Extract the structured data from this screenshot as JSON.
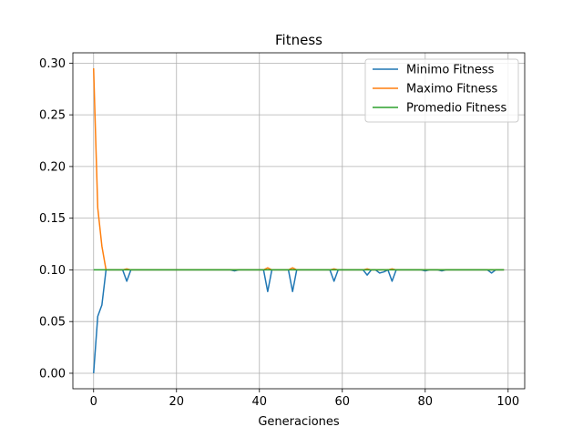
{
  "chart_data": {
    "type": "line",
    "title": "Fitness",
    "xlabel": "Generaciones",
    "ylabel": "",
    "xlim": [
      -5,
      104
    ],
    "ylim": [
      -0.015,
      0.31
    ],
    "xticks": [
      0,
      20,
      40,
      60,
      80,
      100
    ],
    "yticks": [
      0.0,
      0.05,
      0.1,
      0.15,
      0.2,
      0.25,
      0.3
    ],
    "xtick_labels": [
      "0",
      "20",
      "40",
      "60",
      "80",
      "100"
    ],
    "ytick_labels": [
      "0.00",
      "0.05",
      "0.10",
      "0.15",
      "0.20",
      "0.25",
      "0.30"
    ],
    "grid": true,
    "legend_position": "top-right",
    "series": [
      {
        "name": "Minimo Fitness",
        "color": "#1f77b4",
        "x": [
          0,
          1,
          2,
          3,
          4,
          5,
          6,
          7,
          8,
          9,
          10,
          11,
          12,
          13,
          14,
          15,
          16,
          17,
          18,
          19,
          20,
          21,
          22,
          23,
          24,
          25,
          26,
          27,
          28,
          29,
          30,
          31,
          32,
          33,
          34,
          35,
          36,
          37,
          38,
          39,
          40,
          41,
          42,
          43,
          44,
          45,
          46,
          47,
          48,
          49,
          50,
          51,
          52,
          53,
          54,
          55,
          56,
          57,
          58,
          59,
          60,
          61,
          62,
          63,
          64,
          65,
          66,
          67,
          68,
          69,
          70,
          71,
          72,
          73,
          74,
          75,
          76,
          77,
          78,
          79,
          80,
          81,
          82,
          83,
          84,
          85,
          86,
          87,
          88,
          89,
          90,
          91,
          92,
          93,
          94,
          95,
          96,
          97,
          98,
          99
        ],
        "y": [
          0.0,
          0.055,
          0.066,
          0.1,
          0.1,
          0.1,
          0.1,
          0.1,
          0.089,
          0.1,
          0.1,
          0.1,
          0.1,
          0.1,
          0.1,
          0.1,
          0.1,
          0.1,
          0.1,
          0.1,
          0.1,
          0.1,
          0.1,
          0.1,
          0.1,
          0.1,
          0.1,
          0.1,
          0.1,
          0.1,
          0.1,
          0.1,
          0.1,
          0.1,
          0.099,
          0.1,
          0.1,
          0.1,
          0.1,
          0.1,
          0.1,
          0.1,
          0.079,
          0.1,
          0.1,
          0.1,
          0.1,
          0.1,
          0.079,
          0.1,
          0.1,
          0.1,
          0.1,
          0.1,
          0.1,
          0.1,
          0.1,
          0.1,
          0.089,
          0.1,
          0.1,
          0.1,
          0.1,
          0.1,
          0.1,
          0.1,
          0.095,
          0.1,
          0.1,
          0.097,
          0.098,
          0.1,
          0.089,
          0.1,
          0.1,
          0.1,
          0.1,
          0.1,
          0.1,
          0.1,
          0.099,
          0.1,
          0.1,
          0.1,
          0.099,
          0.1,
          0.1,
          0.1,
          0.1,
          0.1,
          0.1,
          0.1,
          0.1,
          0.1,
          0.1,
          0.1,
          0.097,
          0.1,
          0.1,
          0.1
        ]
      },
      {
        "name": "Maximo Fitness",
        "color": "#ff7f0e",
        "x": [
          0,
          1,
          2,
          3,
          4,
          5,
          6,
          7,
          8,
          9,
          10,
          11,
          12,
          13,
          14,
          15,
          16,
          17,
          18,
          19,
          20,
          21,
          22,
          23,
          24,
          25,
          26,
          27,
          28,
          29,
          30,
          31,
          32,
          33,
          34,
          35,
          36,
          37,
          38,
          39,
          40,
          41,
          42,
          43,
          44,
          45,
          46,
          47,
          48,
          49,
          50,
          51,
          52,
          53,
          54,
          55,
          56,
          57,
          58,
          59,
          60,
          61,
          62,
          63,
          64,
          65,
          66,
          67,
          68,
          69,
          70,
          71,
          72,
          73,
          74,
          75,
          76,
          77,
          78,
          79,
          80,
          81,
          82,
          83,
          84,
          85,
          86,
          87,
          88,
          89,
          90,
          91,
          92,
          93,
          94,
          95,
          96,
          97,
          98,
          99
        ],
        "y": [
          0.295,
          0.16,
          0.123,
          0.1,
          0.1,
          0.1,
          0.1,
          0.1,
          0.101,
          0.1,
          0.1,
          0.1,
          0.1,
          0.1,
          0.1,
          0.1,
          0.1,
          0.1,
          0.1,
          0.1,
          0.1,
          0.1,
          0.1,
          0.1,
          0.1,
          0.1,
          0.1,
          0.1,
          0.1,
          0.1,
          0.1,
          0.1,
          0.1,
          0.1,
          0.1,
          0.1,
          0.1,
          0.1,
          0.1,
          0.1,
          0.1,
          0.1,
          0.102,
          0.1,
          0.1,
          0.1,
          0.1,
          0.1,
          0.102,
          0.1,
          0.1,
          0.1,
          0.1,
          0.1,
          0.1,
          0.1,
          0.1,
          0.1,
          0.101,
          0.1,
          0.1,
          0.1,
          0.1,
          0.1,
          0.1,
          0.1,
          0.101,
          0.1,
          0.1,
          0.1,
          0.1,
          0.1,
          0.101,
          0.1,
          0.1,
          0.1,
          0.1,
          0.1,
          0.1,
          0.1,
          0.1,
          0.1,
          0.1,
          0.1,
          0.1,
          0.1,
          0.1,
          0.1,
          0.1,
          0.1,
          0.1,
          0.1,
          0.1,
          0.1,
          0.1,
          0.1,
          0.1,
          0.1,
          0.1,
          0.1
        ]
      },
      {
        "name": "Promedio Fitness",
        "color": "#2ca02c",
        "x": [
          0,
          1,
          2,
          3,
          4,
          5,
          6,
          7,
          8,
          9,
          10,
          11,
          12,
          13,
          14,
          15,
          16,
          17,
          18,
          19,
          20,
          21,
          22,
          23,
          24,
          25,
          26,
          27,
          28,
          29,
          30,
          31,
          32,
          33,
          34,
          35,
          36,
          37,
          38,
          39,
          40,
          41,
          42,
          43,
          44,
          45,
          46,
          47,
          48,
          49,
          50,
          51,
          52,
          53,
          54,
          55,
          56,
          57,
          58,
          59,
          60,
          61,
          62,
          63,
          64,
          65,
          66,
          67,
          68,
          69,
          70,
          71,
          72,
          73,
          74,
          75,
          76,
          77,
          78,
          79,
          80,
          81,
          82,
          83,
          84,
          85,
          86,
          87,
          88,
          89,
          90,
          91,
          92,
          93,
          94,
          95,
          96,
          97,
          98,
          99
        ],
        "y": [
          0.1,
          0.1,
          0.1,
          0.1,
          0.1,
          0.1,
          0.1,
          0.1,
          0.1,
          0.1,
          0.1,
          0.1,
          0.1,
          0.1,
          0.1,
          0.1,
          0.1,
          0.1,
          0.1,
          0.1,
          0.1,
          0.1,
          0.1,
          0.1,
          0.1,
          0.1,
          0.1,
          0.1,
          0.1,
          0.1,
          0.1,
          0.1,
          0.1,
          0.1,
          0.1,
          0.1,
          0.1,
          0.1,
          0.1,
          0.1,
          0.1,
          0.1,
          0.1,
          0.1,
          0.1,
          0.1,
          0.1,
          0.1,
          0.1,
          0.1,
          0.1,
          0.1,
          0.1,
          0.1,
          0.1,
          0.1,
          0.1,
          0.1,
          0.1,
          0.1,
          0.1,
          0.1,
          0.1,
          0.1,
          0.1,
          0.1,
          0.1,
          0.1,
          0.1,
          0.1,
          0.1,
          0.1,
          0.1,
          0.1,
          0.1,
          0.1,
          0.1,
          0.1,
          0.1,
          0.1,
          0.1,
          0.1,
          0.1,
          0.1,
          0.1,
          0.1,
          0.1,
          0.1,
          0.1,
          0.1,
          0.1,
          0.1,
          0.1,
          0.1,
          0.1,
          0.1,
          0.1,
          0.1,
          0.1,
          0.1
        ]
      }
    ]
  }
}
